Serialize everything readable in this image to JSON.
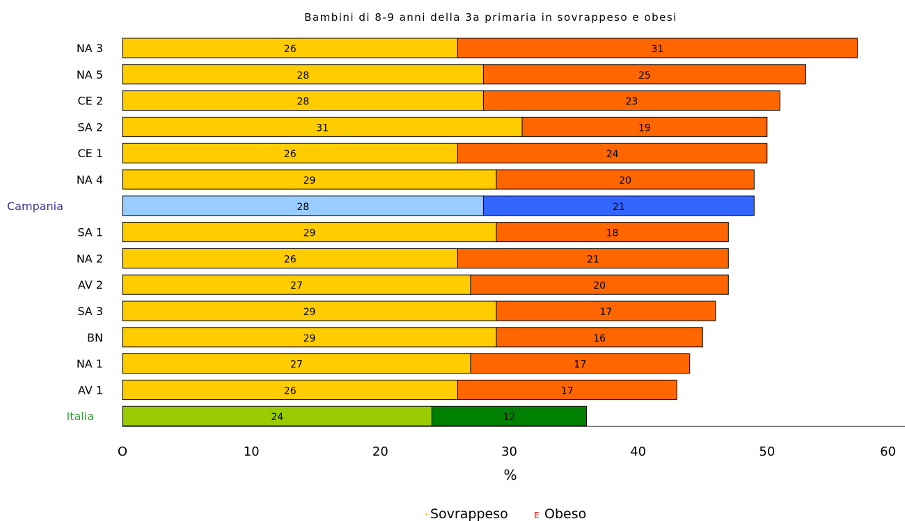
{
  "chart_data": {
    "type": "bar",
    "orientation": "horizontal",
    "stacked": true,
    "title": "Bambini di 8-9 anni della 3a primaria in sovrappeso e obesi",
    "xlabel": "%",
    "xlim": [
      0,
      60
    ],
    "xticks": [
      "O",
      "10",
      "20",
      "30",
      "40",
      "50",
      "60"
    ],
    "categories": [
      "NA 3",
      "NA 5",
      "CE 2",
      "SA 2",
      "CE 1",
      "NA 4",
      "Campania",
      "SA 1",
      "NA 2",
      "AV 2",
      "SA 3",
      "BN",
      "NA 1",
      "AV 1",
      "Italia"
    ],
    "series": [
      {
        "name": "Sovrappeso",
        "values": [
          26,
          28,
          28,
          31,
          26,
          29,
          28,
          29,
          26,
          27,
          29,
          29,
          27,
          26,
          24
        ]
      },
      {
        "name": "Obeso",
        "values": [
          31,
          25,
          23,
          19,
          24,
          20,
          21,
          18,
          21,
          20,
          17,
          16,
          17,
          17,
          12
        ]
      }
    ],
    "colors": {
      "sovrappeso": "#FFCC00",
      "obeso": "#FF6600",
      "campania_sovrappeso": "#99CCFF",
      "campania_obeso": "#3366FF",
      "italia_sovrappeso": "#99CC00",
      "italia_obeso": "#008000",
      "campania_label": "#333399",
      "italia_label": "#339933",
      "legend_obeso_marker": "#FF0000"
    },
    "legend": {
      "position": "bottom",
      "items": [
        {
          "marker": "·",
          "label": "Sovrappeso"
        },
        {
          "marker": "E",
          "label": "Obeso"
        }
      ]
    },
    "grid": false
  }
}
